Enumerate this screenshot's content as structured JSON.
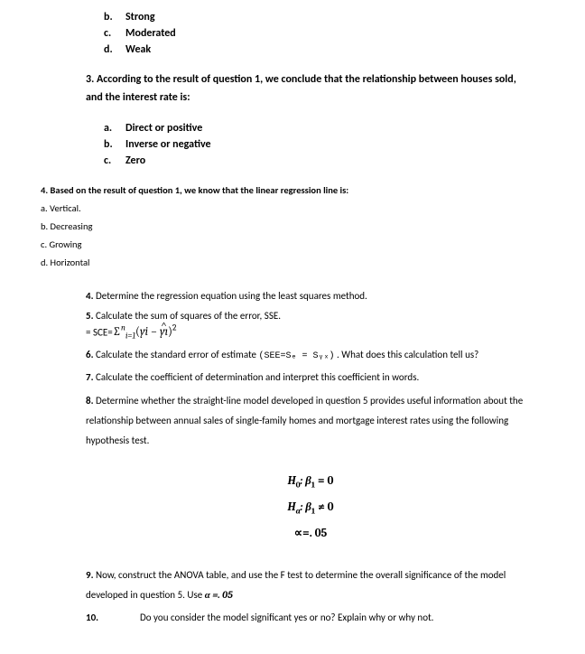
{
  "opts_top": [
    {
      "letter": "b.",
      "text": "Strong"
    },
    {
      "letter": "c.",
      "text": "Moderated"
    },
    {
      "letter": "d.",
      "text": "Weak"
    }
  ],
  "q3": {
    "num": "3.",
    "text": "According to the result of question 1, we conclude that the relationship between houses sold, and the interest rate is:"
  },
  "q3_opts": [
    {
      "letter": "a.",
      "text": "Direct or positive"
    },
    {
      "letter": "b.",
      "text": "Inverse or negative"
    },
    {
      "letter": "c.",
      "text": "Zero"
    }
  ],
  "q4": {
    "line": "4. Based on the result of question 1, we know that the linear regression line is:",
    "opts": [
      " a. Vertical.",
      "b. Decreasing",
      "c. Growing",
      "d. Horizontal"
    ]
  },
  "qset": {
    "q4b": {
      "num": "4.",
      "text": "Determine the regression equation using the least squares method."
    },
    "q5": {
      "num": "5.",
      "text": "Calculate the sum of squares of the error, SSE."
    },
    "q5_formula_prefix": "= SCE=",
    "q6": {
      "num": "6.",
      "text_a": "Calculate the standard error of estimate  ",
      "code": "(SEE=Sₑ = Sᵧₓ)",
      "text_b": " .   What does this calculation tell us?"
    },
    "q7": {
      "num": "7.",
      "text": "Calculate the coefficient of determination and interpret this coefficient in words."
    },
    "q8": {
      "num": "8.",
      "text": "Determine whether the straight-line model developed in question 5 provides useful information about the relationship between annual sales of single-family homes and mortgage interest rates using the following hypothesis test."
    }
  },
  "hyp": {
    "h0_label": "H",
    "h0_sub": "0",
    "h0_body": ": β",
    "h0_body_sub": "1",
    "h0_rhs": " = 0",
    "ha_label": "H",
    "ha_sub": "a",
    "ha_body": ": β",
    "ha_body_sub": "1",
    "ha_rhs": " ≠ 0",
    "alpha": "∝=. 05"
  },
  "q9": {
    "num": "9.",
    "text_a": "Now, construct the ANOVA table, and use the F test to determine the overall significance of the model developed in question 5. Use ",
    "alpha": "α =. 05"
  },
  "q10": {
    "num": "10.",
    "text": "Do you consider the model significant yes or no? Explain why or why not."
  }
}
